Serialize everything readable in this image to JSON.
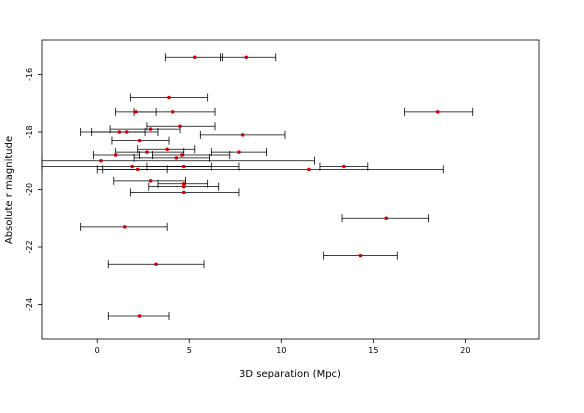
{
  "chart_data": {
    "type": "scatter",
    "title": "",
    "xlabel": "3D separation (Mpc)",
    "ylabel": "Absolute r magnitude",
    "xlim": [
      -3.0,
      24.0
    ],
    "ylim": [
      -14.8,
      -25.2
    ],
    "y_reversed": true,
    "xticks": [
      0,
      5,
      10,
      15,
      20
    ],
    "yticks": [
      -16,
      -18,
      -20,
      -22,
      -24
    ],
    "ytick_labels": [
      "-16",
      "-18",
      "-20",
      "-22",
      "-24"
    ],
    "grid": false,
    "legend": "none",
    "point_color": "#d40000",
    "errorbar_color": "#000000",
    "points": [
      {
        "x": 5.3,
        "y": -15.4,
        "xerr_lo": 3.7,
        "xerr_hi": 6.8
      },
      {
        "x": 8.1,
        "y": -15.4,
        "xerr_lo": 6.7,
        "xerr_hi": 9.7
      },
      {
        "x": 3.9,
        "y": -16.8,
        "xerr_lo": 1.8,
        "xerr_hi": 6.0
      },
      {
        "x": 2.1,
        "y": -17.3,
        "xerr_lo": 1.0,
        "xerr_hi": 3.2
      },
      {
        "x": 4.1,
        "y": -17.3,
        "xerr_lo": 2.0,
        "xerr_hi": 6.4
      },
      {
        "x": 18.5,
        "y": -17.3,
        "xerr_lo": 16.7,
        "xerr_hi": 20.4
      },
      {
        "x": 4.5,
        "y": -17.8,
        "xerr_lo": 2.7,
        "xerr_hi": 6.4
      },
      {
        "x": 1.2,
        "y": -18.0,
        "xerr_lo": -0.3,
        "xerr_hi": 2.6
      },
      {
        "x": 1.6,
        "y": -18.0,
        "xerr_lo": -0.9,
        "xerr_hi": 3.3
      },
      {
        "x": 2.9,
        "y": -17.9,
        "xerr_lo": 0.7,
        "xerr_hi": 4.5
      },
      {
        "x": 7.9,
        "y": -18.1,
        "xerr_lo": 5.6,
        "xerr_hi": 10.2
      },
      {
        "x": 2.3,
        "y": -18.3,
        "xerr_lo": 0.8,
        "xerr_hi": 3.9
      },
      {
        "x": 3.8,
        "y": -18.6,
        "xerr_lo": 2.2,
        "xerr_hi": 5.3
      },
      {
        "x": 1.0,
        "y": -18.8,
        "xerr_lo": -0.2,
        "xerr_hi": 2.3
      },
      {
        "x": 2.7,
        "y": -18.7,
        "xerr_lo": 1.0,
        "xerr_hi": 4.7
      },
      {
        "x": 4.3,
        "y": -18.9,
        "xerr_lo": 2.0,
        "xerr_hi": 6.1
      },
      {
        "x": 4.6,
        "y": -18.8,
        "xerr_lo": 3.0,
        "xerr_hi": 7.2
      },
      {
        "x": 7.7,
        "y": -18.7,
        "xerr_lo": 6.2,
        "xerr_hi": 9.2
      },
      {
        "x": 0.2,
        "y": -19.0,
        "xerr_lo": -3.0,
        "xerr_hi": 11.8
      },
      {
        "x": 1.9,
        "y": -19.2,
        "xerr_lo": -3.0,
        "xerr_hi": 7.7
      },
      {
        "x": 2.2,
        "y": -19.3,
        "xerr_lo": 0.3,
        "xerr_hi": 3.8
      },
      {
        "x": 4.7,
        "y": -19.2,
        "xerr_lo": 2.7,
        "xerr_hi": 6.2
      },
      {
        "x": 13.4,
        "y": -19.2,
        "xerr_lo": 12.1,
        "xerr_hi": 14.7
      },
      {
        "x": 11.5,
        "y": -19.3,
        "xerr_lo": 0.0,
        "xerr_hi": 18.8
      },
      {
        "x": 2.9,
        "y": -19.7,
        "xerr_lo": 0.9,
        "xerr_hi": 4.8
      },
      {
        "x": 4.7,
        "y": -19.8,
        "xerr_lo": 3.3,
        "xerr_hi": 6.0
      },
      {
        "x": 4.7,
        "y": -19.9,
        "xerr_lo": 2.8,
        "xerr_hi": 6.6
      },
      {
        "x": 4.7,
        "y": -20.1,
        "xerr_lo": 1.8,
        "xerr_hi": 7.7
      },
      {
        "x": 15.7,
        "y": -21.0,
        "xerr_lo": 13.3,
        "xerr_hi": 18.0
      },
      {
        "x": 1.5,
        "y": -21.3,
        "xerr_lo": -0.9,
        "xerr_hi": 3.8
      },
      {
        "x": 14.3,
        "y": -22.3,
        "xerr_lo": 12.3,
        "xerr_hi": 16.3
      },
      {
        "x": 3.2,
        "y": -22.6,
        "xerr_lo": 0.6,
        "xerr_hi": 5.8
      },
      {
        "x": 2.3,
        "y": -24.4,
        "xerr_lo": 0.6,
        "xerr_hi": 3.9
      }
    ]
  }
}
